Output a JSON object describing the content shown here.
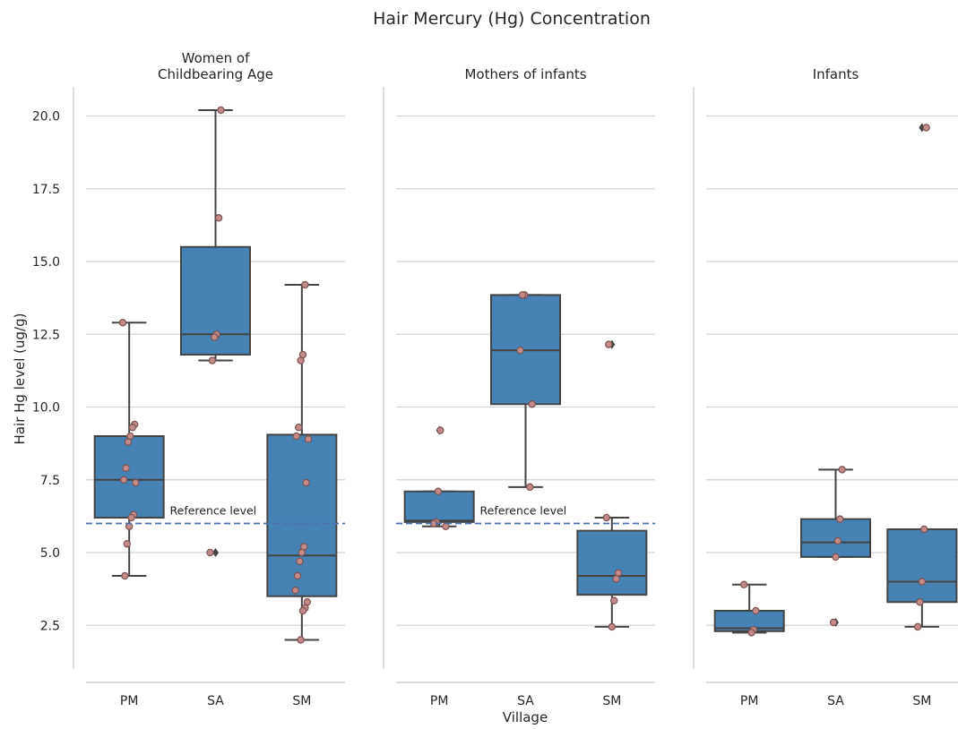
{
  "chart_data": {
    "type": "box",
    "title": "Hair Mercury (Hg) Concentration",
    "xlabel": "Village",
    "ylabel": "Hair Hg level (ug/g)",
    "ylim": [
      1.0,
      21.0
    ],
    "yticks": [
      "2.5",
      "5.0",
      "7.5",
      "10.0",
      "12.5",
      "15.0",
      "17.5",
      "20.0"
    ],
    "grid": "horizontal",
    "categories": [
      "PM",
      "SA",
      "SM"
    ],
    "reference": {
      "label": "Reference level",
      "value": 6.0,
      "color": "#4c72b0"
    },
    "colors": {
      "box": "#4682b4",
      "line": "#444444",
      "point": "#c28a88",
      "point_edge": "#7a5554",
      "grid": "#d3d3d3"
    },
    "panels": [
      {
        "title": "Women of\nChildbearing Age",
        "show_reference": true,
        "boxes": [
          {
            "category": "PM",
            "q1": 6.2,
            "median": 7.5,
            "q3": 9.0,
            "whisker_low": 4.2,
            "whisker_high": 12.9,
            "outliers": [],
            "points": [
              12.9,
              9.4,
              9.3,
              9.0,
              8.8,
              7.9,
              7.5,
              7.4,
              6.3,
              6.2,
              5.9,
              5.3,
              4.2
            ]
          },
          {
            "category": "SA",
            "q1": 11.8,
            "median": 12.5,
            "q3": 15.5,
            "whisker_low": 11.6,
            "whisker_high": 20.2,
            "outliers": [
              5.0
            ],
            "points": [
              20.2,
              16.5,
              12.5,
              12.4,
              11.6,
              5.0
            ]
          },
          {
            "category": "SM",
            "q1": 3.5,
            "median": 4.9,
            "q3": 9.05,
            "whisker_low": 2.0,
            "whisker_high": 14.2,
            "outliers": [],
            "points": [
              14.2,
              11.8,
              11.6,
              9.3,
              9.0,
              8.9,
              7.4,
              5.2,
              5.0,
              4.7,
              4.2,
              3.7,
              3.3,
              3.1,
              3.0,
              2.0
            ]
          }
        ]
      },
      {
        "title": "Mothers of infants",
        "show_reference": true,
        "boxes": [
          {
            "category": "PM",
            "q1": 6.05,
            "median": 6.1,
            "q3": 7.1,
            "whisker_low": 5.9,
            "whisker_high": 7.1,
            "outliers": [
              9.2
            ],
            "points": [
              9.2,
              7.1,
              6.05,
              6.0,
              5.9
            ]
          },
          {
            "category": "SA",
            "q1": 10.1,
            "median": 11.95,
            "q3": 13.85,
            "whisker_low": 7.25,
            "whisker_high": 13.85,
            "outliers": [],
            "points": [
              13.85,
              13.85,
              11.95,
              10.1,
              7.25
            ]
          },
          {
            "category": "SM",
            "q1": 3.55,
            "median": 4.2,
            "q3": 5.75,
            "whisker_low": 2.45,
            "whisker_high": 6.2,
            "outliers": [
              12.15
            ],
            "points": [
              12.15,
              6.2,
              4.3,
              4.1,
              3.35,
              2.45
            ]
          }
        ]
      },
      {
        "title": "Infants",
        "show_reference": false,
        "boxes": [
          {
            "category": "PM",
            "q1": 2.3,
            "median": 2.4,
            "q3": 3.0,
            "whisker_low": 2.25,
            "whisker_high": 3.9,
            "outliers": [],
            "points": [
              3.9,
              3.0,
              2.35,
              2.25
            ]
          },
          {
            "category": "SA",
            "q1": 4.85,
            "median": 5.35,
            "q3": 6.15,
            "whisker_low": 4.85,
            "whisker_high": 7.85,
            "outliers": [
              2.6
            ],
            "points": [
              7.85,
              6.15,
              5.4,
              4.85,
              2.6
            ]
          },
          {
            "category": "SM",
            "q1": 3.3,
            "median": 4.0,
            "q3": 5.8,
            "whisker_low": 2.45,
            "whisker_high": 5.8,
            "outliers": [
              19.6
            ],
            "points": [
              19.6,
              5.8,
              4.0,
              3.3,
              2.45
            ]
          }
        ]
      }
    ]
  }
}
